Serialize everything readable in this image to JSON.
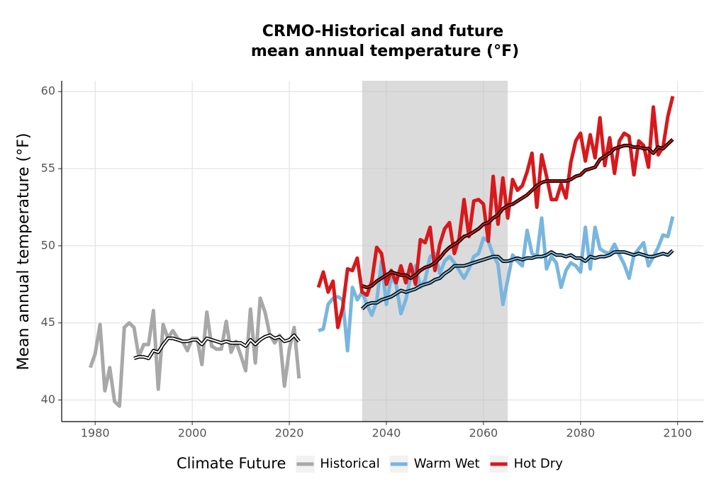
{
  "chart_data": {
    "type": "line",
    "title": [
      "CRMO-Historical and future",
      "mean annual temperature (°F)"
    ],
    "y_label": "Mean annual temperature (°F)",
    "legend_title": "Climate Future",
    "legend": "bottom",
    "grid": true,
    "xlim": [
      1973.1,
      2105.3
    ],
    "ylim": [
      38.6,
      60.7
    ],
    "xticks": [
      1980,
      2000,
      2020,
      2040,
      2060,
      2080,
      2100
    ],
    "yticks": [
      40,
      45,
      50,
      55,
      60
    ],
    "shade": [
      2035,
      2065
    ],
    "series": [
      {
        "name": "Historical",
        "color": "#a8a8a8",
        "x": [
          1979,
          1980,
          1981,
          1982,
          1983,
          1984,
          1985,
          1986,
          1987,
          1988,
          1989,
          1990,
          1991,
          1992,
          1993,
          1994,
          1995,
          1996,
          1997,
          1998,
          1999,
          2000,
          2001,
          2002,
          2003,
          2004,
          2005,
          2006,
          2007,
          2008,
          2009,
          2010,
          2011,
          2012,
          2013,
          2014,
          2015,
          2016,
          2017,
          2018,
          2019,
          2020,
          2021,
          2022
        ],
        "values": [
          42.1,
          43.0,
          44.9,
          40.6,
          42.1,
          39.9,
          39.6,
          44.7,
          45.0,
          44.7,
          42.8,
          43.6,
          43.6,
          45.8,
          40.7,
          44.9,
          44.0,
          44.5,
          44.0,
          43.8,
          43.2,
          44.0,
          44.0,
          42.3,
          45.7,
          43.5,
          43.3,
          43.3,
          45.1,
          43.1,
          43.8,
          42.9,
          41.9,
          45.9,
          42.4,
          46.6,
          45.7,
          44.2,
          43.7,
          44.2,
          40.9,
          43.3,
          44.7,
          41.4
        ],
        "smooth_values": [
          null,
          null,
          null,
          null,
          null,
          null,
          null,
          null,
          null,
          42.7,
          42.8,
          42.8,
          42.7,
          43.2,
          43.1,
          43.6,
          44.0,
          44.0,
          43.9,
          43.8,
          43.8,
          43.9,
          43.9,
          43.6,
          44.0,
          43.9,
          43.8,
          43.7,
          43.8,
          43.7,
          43.7,
          43.7,
          43.5,
          43.9,
          43.6,
          43.9,
          44.1,
          44.2,
          44.0,
          44.1,
          43.8,
          43.9,
          44.2,
          43.8
        ]
      },
      {
        "name": "Warm Wet",
        "color": "#78b6df",
        "x": [
          2026,
          2027,
          2028,
          2029,
          2030,
          2031,
          2032,
          2033,
          2034,
          2035,
          2036,
          2037,
          2038,
          2039,
          2040,
          2041,
          2042,
          2043,
          2044,
          2045,
          2046,
          2047,
          2048,
          2049,
          2050,
          2051,
          2052,
          2053,
          2054,
          2055,
          2056,
          2057,
          2058,
          2059,
          2060,
          2061,
          2062,
          2063,
          2064,
          2065,
          2066,
          2067,
          2068,
          2069,
          2070,
          2071,
          2072,
          2073,
          2074,
          2075,
          2076,
          2077,
          2078,
          2079,
          2080,
          2081,
          2082,
          2083,
          2084,
          2085,
          2086,
          2087,
          2088,
          2089,
          2090,
          2091,
          2092,
          2093,
          2094,
          2095,
          2096,
          2097,
          2098,
          2099
        ],
        "values": [
          44.5,
          44.6,
          46.2,
          46.6,
          46.7,
          46.5,
          43.2,
          47.3,
          46.5,
          47.0,
          46.2,
          45.5,
          46.4,
          49.0,
          46.2,
          48.0,
          47.5,
          45.6,
          46.5,
          48.0,
          48.7,
          47.3,
          47.8,
          49.3,
          49.5,
          48.2,
          49.0,
          49.3,
          48.9,
          48.4,
          47.9,
          48.5,
          49.3,
          49.5,
          50.5,
          50.3,
          49.4,
          48.8,
          46.2,
          47.8,
          49.4,
          49.0,
          48.7,
          51.0,
          49.5,
          49.3,
          51.8,
          48.5,
          49.3,
          48.9,
          47.3,
          48.4,
          48.9,
          48.7,
          48.3,
          51.2,
          48.5,
          51.2,
          49.8,
          49.6,
          49.5,
          50.1,
          49.4,
          48.8,
          47.9,
          49.4,
          49.8,
          50.2,
          48.7,
          49.3,
          49.9,
          50.7,
          50.6,
          51.9
        ],
        "smooth_values": [
          null,
          null,
          null,
          null,
          null,
          null,
          null,
          null,
          null,
          45.9,
          46.2,
          46.3,
          46.3,
          46.5,
          46.6,
          46.7,
          46.9,
          47.1,
          47.0,
          47.1,
          47.2,
          47.4,
          47.5,
          47.6,
          47.8,
          47.9,
          48.2,
          48.4,
          48.7,
          48.7,
          48.7,
          48.8,
          48.9,
          49.0,
          49.1,
          49.2,
          49.3,
          49.3,
          49.0,
          49.0,
          49.1,
          49.2,
          49.1,
          49.2,
          49.2,
          49.3,
          49.3,
          49.4,
          49.6,
          49.4,
          49.4,
          49.3,
          49.4,
          49.2,
          49.2,
          49.0,
          49.3,
          49.2,
          49.3,
          49.3,
          49.4,
          49.6,
          49.6,
          49.6,
          49.5,
          49.4,
          49.5,
          49.4,
          49.3,
          49.3,
          49.4,
          49.5,
          49.4,
          49.7
        ]
      },
      {
        "name": "Hot Dry",
        "color": "#d7191c",
        "x": [
          2026,
          2027,
          2028,
          2029,
          2030,
          2031,
          2032,
          2033,
          2034,
          2035,
          2036,
          2037,
          2038,
          2039,
          2040,
          2041,
          2042,
          2043,
          2044,
          2045,
          2046,
          2047,
          2048,
          2049,
          2050,
          2051,
          2052,
          2053,
          2054,
          2055,
          2056,
          2057,
          2058,
          2059,
          2060,
          2061,
          2062,
          2063,
          2064,
          2065,
          2066,
          2067,
          2068,
          2069,
          2070,
          2071,
          2072,
          2073,
          2074,
          2075,
          2076,
          2077,
          2078,
          2079,
          2080,
          2081,
          2082,
          2083,
          2084,
          2085,
          2086,
          2087,
          2088,
          2089,
          2090,
          2091,
          2092,
          2093,
          2094,
          2095,
          2096,
          2097,
          2098,
          2099
        ],
        "values": [
          47.3,
          48.3,
          47.0,
          47.7,
          44.7,
          46.0,
          48.5,
          48.4,
          49.2,
          47.0,
          46.8,
          47.7,
          49.9,
          49.5,
          47.5,
          48.4,
          47.6,
          48.7,
          47.6,
          48.8,
          47.5,
          50.4,
          50.2,
          51.2,
          48.4,
          50.1,
          51.1,
          51.5,
          49.5,
          50.5,
          53.0,
          50.6,
          52.9,
          53.0,
          52.7,
          50.3,
          54.5,
          51.4,
          54.4,
          51.8,
          54.3,
          53.6,
          53.9,
          54.8,
          56.0,
          52.5,
          55.9,
          54.5,
          53.0,
          53.0,
          54.0,
          53.1,
          55.4,
          56.8,
          57.3,
          55.5,
          57.2,
          55.7,
          58.3,
          55.2,
          57.0,
          54.7,
          56.8,
          57.3,
          57.1,
          54.6,
          56.8,
          56.5,
          55.1,
          59.0,
          55.9,
          56.4,
          58.4,
          59.7
        ],
        "smooth_values": [
          null,
          null,
          null,
          null,
          null,
          null,
          null,
          null,
          null,
          47.4,
          47.3,
          47.4,
          47.7,
          47.9,
          48.1,
          48.3,
          48.2,
          48.1,
          48.1,
          47.9,
          48.1,
          48.4,
          48.6,
          48.7,
          48.9,
          49.2,
          49.6,
          49.9,
          50.1,
          50.3,
          50.6,
          50.7,
          50.9,
          51.1,
          51.4,
          51.5,
          51.8,
          52.0,
          52.4,
          52.6,
          52.7,
          52.9,
          53.1,
          53.3,
          53.6,
          53.9,
          54.1,
          54.2,
          54.2,
          54.2,
          54.2,
          54.2,
          54.3,
          54.5,
          54.6,
          54.9,
          55.0,
          55.1,
          55.6,
          55.8,
          56.0,
          56.3,
          56.4,
          56.5,
          56.5,
          56.4,
          56.4,
          56.3,
          56.3,
          56.0,
          56.4,
          56.3,
          56.6,
          56.9
        ]
      }
    ]
  }
}
